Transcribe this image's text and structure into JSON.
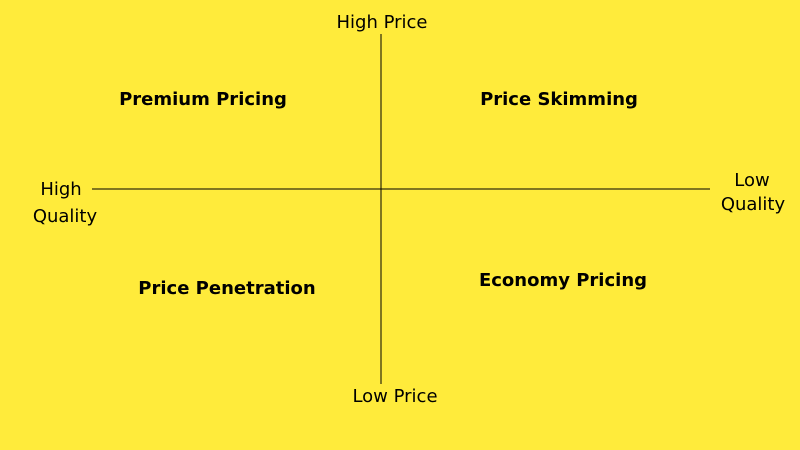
{
  "axes": {
    "top": "High Price",
    "bottom": "Low Price",
    "left": [
      "High",
      "Quality"
    ],
    "right": [
      "Low",
      "Quality"
    ]
  },
  "quadrants": {
    "top_left": "Premium Pricing",
    "top_right": "Price Skimming",
    "bottom_left": "Price Penetration",
    "bottom_right": "Economy Pricing"
  }
}
